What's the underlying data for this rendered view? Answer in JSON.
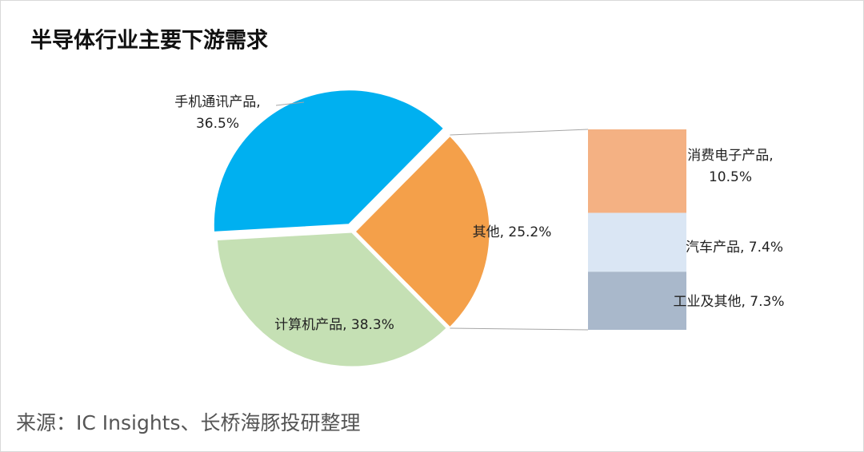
{
  "chart_data": {
    "type": "pie",
    "title": "半导体行业主要下游需求",
    "categories": [
      "手机通讯产品",
      "计算机产品",
      "其他"
    ],
    "values": [
      36.5,
      38.3,
      25.2
    ],
    "value_labels": [
      "36.5%",
      "38.3%",
      "25.2%"
    ],
    "colors": [
      "#c5e0b4",
      "#00b0f0",
      "#f4a04a"
    ],
    "label_separator": ", ",
    "breakdown": {
      "categories": [
        "消费电子产品",
        "汽车产品",
        "工业及其他"
      ],
      "values": [
        10.5,
        7.4,
        7.3
      ],
      "value_labels": [
        "10.5%",
        "7.4%",
        "7.3%"
      ],
      "colors": [
        "#f4b183",
        "#dae6f4",
        "#a9b8cb"
      ]
    },
    "source": "来源：IC Insights、长桥海豚投研整理"
  }
}
